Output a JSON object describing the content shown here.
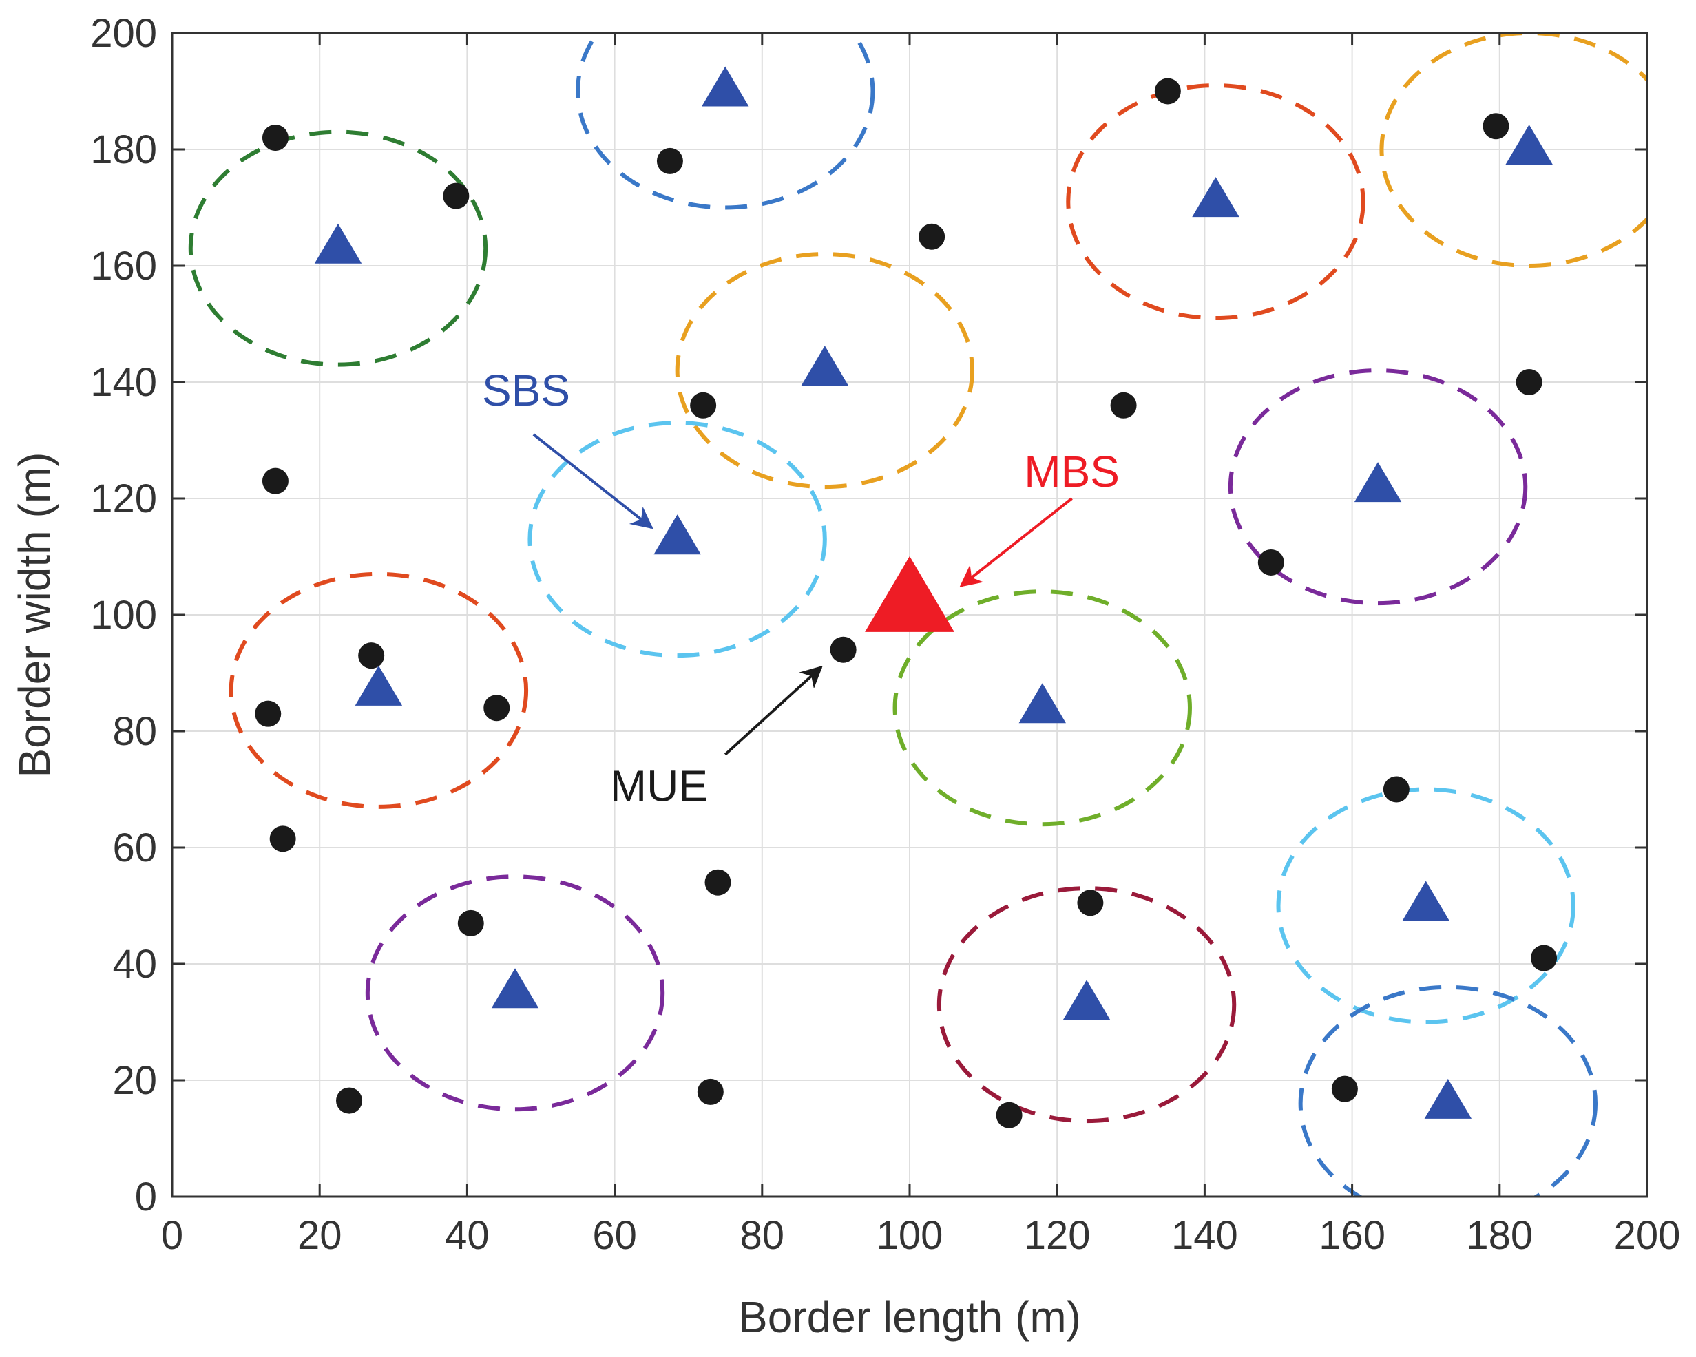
{
  "chart_data": {
    "type": "scatter",
    "title": "",
    "xlabel": "Border length (m)",
    "ylabel": "Border width (m)",
    "xlim": [
      0,
      200
    ],
    "ylim": [
      0,
      200
    ],
    "xticks": [
      0,
      20,
      40,
      60,
      80,
      100,
      120,
      140,
      160,
      180,
      200
    ],
    "yticks": [
      0,
      20,
      40,
      60,
      80,
      100,
      120,
      140,
      160,
      180,
      200
    ],
    "grid": true,
    "colors": {
      "sbs": "#2f4fa8",
      "mbs": "#ee1c25",
      "mue": "#1a1a1a",
      "grid": "#dedede",
      "axis": "#333333"
    },
    "mbs": {
      "name": "MBS",
      "x": 100,
      "y": 102
    },
    "sbs": [
      {
        "x": 22.5,
        "y": 163,
        "radius": 20,
        "coverage_color": "#2e7d32"
      },
      {
        "x": 75,
        "y": 190,
        "radius": 20,
        "coverage_color": "#3a78c8"
      },
      {
        "x": 88.5,
        "y": 142,
        "radius": 20,
        "coverage_color": "#e8a020"
      },
      {
        "x": 68.5,
        "y": 113,
        "radius": 20,
        "coverage_color": "#5bc4ef"
      },
      {
        "x": 141.5,
        "y": 171,
        "radius": 20,
        "coverage_color": "#e04a1f"
      },
      {
        "x": 184,
        "y": 180,
        "radius": 20,
        "coverage_color": "#e8a020"
      },
      {
        "x": 163.5,
        "y": 122,
        "radius": 20,
        "coverage_color": "#7a2a9a"
      },
      {
        "x": 118,
        "y": 84,
        "radius": 20,
        "coverage_color": "#6fae2a"
      },
      {
        "x": 28,
        "y": 87,
        "radius": 20,
        "coverage_color": "#e04a1f"
      },
      {
        "x": 46.5,
        "y": 35,
        "radius": 20,
        "coverage_color": "#7a2a9a"
      },
      {
        "x": 124,
        "y": 33,
        "radius": 20,
        "coverage_color": "#9a1a3a"
      },
      {
        "x": 170,
        "y": 50,
        "radius": 20,
        "coverage_color": "#5bc4ef"
      },
      {
        "x": 173,
        "y": 16,
        "radius": 20,
        "coverage_color": "#3a78c8"
      }
    ],
    "mue": [
      [
        14,
        182
      ],
      [
        38.5,
        172
      ],
      [
        67.5,
        178
      ],
      [
        103,
        165
      ],
      [
        135,
        190
      ],
      [
        179.5,
        184
      ],
      [
        72,
        136
      ],
      [
        14,
        123
      ],
      [
        129,
        136
      ],
      [
        184,
        140
      ],
      [
        149,
        109
      ],
      [
        91,
        94
      ],
      [
        27,
        93
      ],
      [
        13,
        83
      ],
      [
        44,
        84
      ],
      [
        15,
        61.5
      ],
      [
        74,
        54
      ],
      [
        40.5,
        47
      ],
      [
        24,
        16.5
      ],
      [
        73,
        18
      ],
      [
        113.5,
        14
      ],
      [
        124.5,
        50.5
      ],
      [
        166,
        70
      ],
      [
        186,
        41
      ],
      [
        159,
        18.5
      ]
    ],
    "annotations": [
      {
        "text": "SBS",
        "color": "#2f4fa8",
        "text_at": [
          48,
          136
        ],
        "arrow_from": [
          49,
          131
        ],
        "arrow_to": [
          65,
          115
        ]
      },
      {
        "text": "MBS",
        "color": "#ee1c25",
        "text_at": [
          122,
          122
        ],
        "arrow_from": [
          122,
          120
        ],
        "arrow_to": [
          107,
          105
        ]
      },
      {
        "text": "MUE",
        "color": "#1a1a1a",
        "text_at": [
          66,
          68
        ],
        "arrow_from": [
          75,
          76
        ],
        "arrow_to": [
          88,
          91
        ]
      }
    ]
  }
}
